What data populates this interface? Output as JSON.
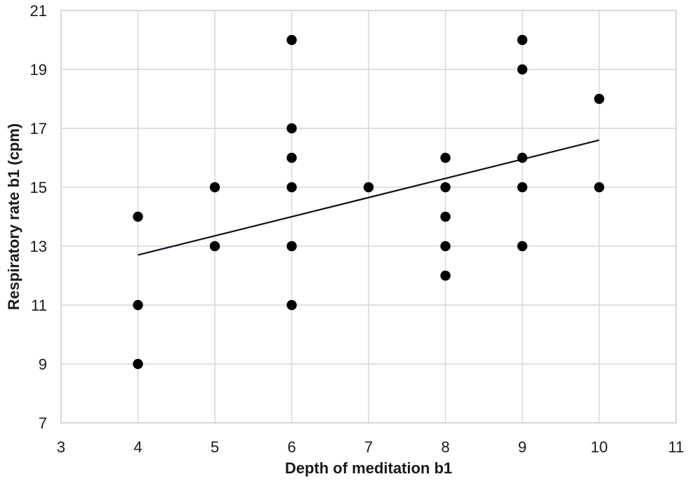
{
  "chart_data": {
    "type": "scatter",
    "title": "",
    "xlabel": "Depth of meditation b1",
    "ylabel": "Respiratory rate b1 (cpm)",
    "xlim": [
      3,
      11
    ],
    "ylim": [
      7,
      21
    ],
    "x_ticks": [
      3,
      4,
      5,
      6,
      7,
      8,
      9,
      10,
      11
    ],
    "y_ticks": [
      7,
      9,
      11,
      13,
      15,
      17,
      19,
      21
    ],
    "grid": true,
    "legend": false,
    "points": [
      {
        "x": 4,
        "y": 14
      },
      {
        "x": 4,
        "y": 11
      },
      {
        "x": 4,
        "y": 9
      },
      {
        "x": 5,
        "y": 15
      },
      {
        "x": 5,
        "y": 13
      },
      {
        "x": 6,
        "y": 20
      },
      {
        "x": 6,
        "y": 17
      },
      {
        "x": 6,
        "y": 16
      },
      {
        "x": 6,
        "y": 15
      },
      {
        "x": 6,
        "y": 13
      },
      {
        "x": 6,
        "y": 11
      },
      {
        "x": 7,
        "y": 15
      },
      {
        "x": 8,
        "y": 16
      },
      {
        "x": 8,
        "y": 15
      },
      {
        "x": 8,
        "y": 14
      },
      {
        "x": 8,
        "y": 13
      },
      {
        "x": 8,
        "y": 12
      },
      {
        "x": 9,
        "y": 20
      },
      {
        "x": 9,
        "y": 19
      },
      {
        "x": 9,
        "y": 16
      },
      {
        "x": 9,
        "y": 15
      },
      {
        "x": 9,
        "y": 13
      },
      {
        "x": 10,
        "y": 18
      },
      {
        "x": 10,
        "y": 15
      }
    ],
    "trendline": {
      "x1": 4,
      "y1": 12.7,
      "x2": 10,
      "y2": 16.6
    },
    "colors": {
      "point": "#000000",
      "trendline": "#10101e",
      "grid": "#d6d6d6",
      "axis_text": "#1a1a1a",
      "background": "#ffffff"
    }
  }
}
